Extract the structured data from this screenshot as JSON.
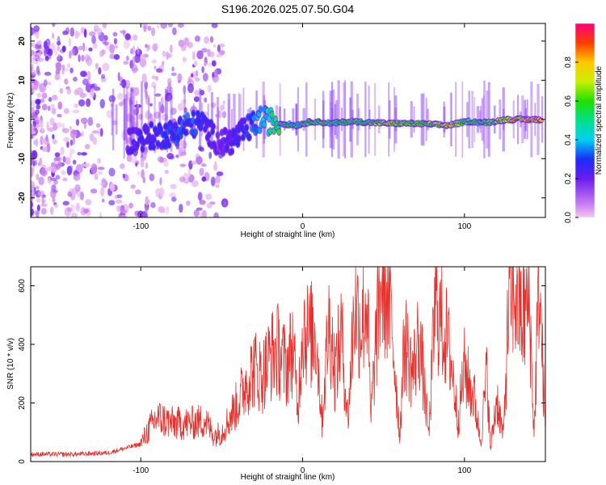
{
  "title": "S196.2026.025.07.50.G04",
  "chart_data": [
    {
      "type": "heatmap",
      "xlabel": "Height of straight line (km)",
      "ylabel": "Frequency (Hz)",
      "xlim": [
        -168,
        150
      ],
      "ylim": [
        -25,
        24.5
      ],
      "xticks": [
        "-100",
        "0",
        "100"
      ],
      "yticks": [
        "-20",
        "-10",
        "0",
        "10",
        "20"
      ],
      "ridge": [
        {
          "x": -108,
          "f": -5.5,
          "a": 0.22
        },
        {
          "x": -98,
          "f": -4.5,
          "a": 0.28
        },
        {
          "x": -88,
          "f": -4,
          "a": 0.3
        },
        {
          "x": -80,
          "f": -3.5,
          "a": 0.32
        },
        {
          "x": -72,
          "f": -1.5,
          "a": 0.36
        },
        {
          "x": -62,
          "f": -1,
          "a": 0.3
        },
        {
          "x": -52,
          "f": -6,
          "a": 0.2
        },
        {
          "x": -44,
          "f": -5.5,
          "a": 0.26
        },
        {
          "x": -36,
          "f": -3,
          "a": 0.3
        },
        {
          "x": -26,
          "f": 0,
          "a": 0.42
        },
        {
          "x": -14,
          "f": -1,
          "a": 0.6
        },
        {
          "x": -4,
          "f": -1.5,
          "a": 0.55
        },
        {
          "x": 6,
          "f": -0.5,
          "a": 0.66
        },
        {
          "x": 18,
          "f": -1,
          "a": 0.6
        },
        {
          "x": 30,
          "f": -0.5,
          "a": 0.62
        },
        {
          "x": 42,
          "f": -0.8,
          "a": 0.64
        },
        {
          "x": 54,
          "f": -1,
          "a": 0.7
        },
        {
          "x": 66,
          "f": -1,
          "a": 0.68
        },
        {
          "x": 78,
          "f": -1.2,
          "a": 0.66
        },
        {
          "x": 90,
          "f": -1.5,
          "a": 0.82
        },
        {
          "x": 102,
          "f": -0.5,
          "a": 0.6
        },
        {
          "x": 114,
          "f": -0.8,
          "a": 0.62
        },
        {
          "x": 126,
          "f": 0,
          "a": 0.78
        },
        {
          "x": 138,
          "f": 0,
          "a": 0.86
        },
        {
          "x": 148,
          "f": 0,
          "a": 0.9
        }
      ],
      "colorbar": {
        "label": "Normalized spectral amplitude",
        "range": [
          0,
          1
        ],
        "ticks": [
          "0.0",
          "0.2",
          "0.4",
          "0.6",
          "0.8"
        ]
      }
    },
    {
      "type": "line",
      "xlabel": "Height of straight line (km)",
      "ylabel": "SNR (10 * v/v)",
      "xlim": [
        -168,
        150
      ],
      "ylim": [
        0,
        665
      ],
      "xticks": [
        "-100",
        "0",
        "100"
      ],
      "yticks": [
        "0",
        "200",
        "400",
        "600"
      ],
      "series": [
        {
          "name": "SNR",
          "color": "#e8302c",
          "x": [
            -168,
            -140,
            -120,
            -110,
            -100,
            -95,
            -90,
            -80,
            -70,
            -60,
            -55,
            -50,
            -45,
            -40,
            -35,
            -30,
            -25,
            -20,
            -15,
            -10,
            -6,
            -3,
            0,
            4,
            8,
            12,
            16,
            18,
            20,
            24,
            28,
            32,
            36,
            40,
            42,
            45,
            48,
            50,
            55,
            60,
            63,
            68,
            72,
            78,
            82,
            85,
            88,
            92,
            96,
            100,
            103,
            106,
            110,
            114,
            116,
            120,
            124,
            128,
            132,
            136,
            140,
            143,
            146,
            150
          ],
          "values": [
            25,
            25,
            30,
            45,
            60,
            110,
            150,
            130,
            130,
            140,
            90,
            100,
            150,
            200,
            270,
            320,
            290,
            360,
            380,
            320,
            400,
            170,
            480,
            420,
            450,
            140,
            470,
            420,
            300,
            440,
            140,
            540,
            470,
            560,
            140,
            380,
            600,
            630,
            480,
            90,
            420,
            300,
            430,
            90,
            560,
            480,
            440,
            340,
            140,
            320,
            260,
            220,
            70,
            310,
            40,
            220,
            80,
            620,
            560,
            480,
            560,
            90,
            640,
            100
          ]
        }
      ]
    }
  ]
}
